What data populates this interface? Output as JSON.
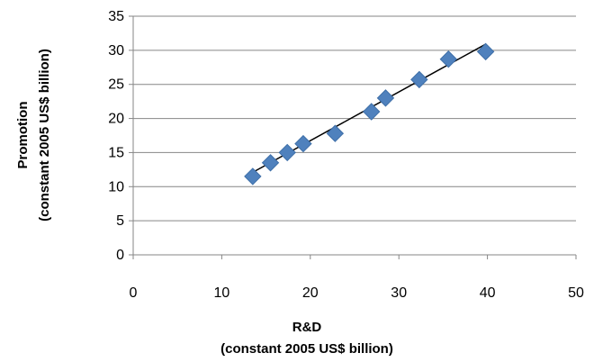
{
  "chart_data": {
    "type": "scatter",
    "xlabel": [
      "R&D",
      "(constant 2005 US$ billion)"
    ],
    "ylabel": [
      "Promotion",
      "(constant 2005 US$ billion)"
    ],
    "xlim": [
      0,
      50
    ],
    "ylim": [
      0,
      35
    ],
    "xticks": [
      0,
      10,
      20,
      30,
      40,
      50
    ],
    "yticks": [
      0,
      5,
      10,
      15,
      20,
      25,
      30,
      35
    ],
    "grid": "horizontal",
    "legend": "none",
    "series": [
      {
        "marker": "diamond",
        "color": "#4F81BD",
        "points": [
          {
            "x": 13.5,
            "y": 11.5
          },
          {
            "x": 15.5,
            "y": 13.5
          },
          {
            "x": 17.4,
            "y": 15.0
          },
          {
            "x": 19.2,
            "y": 16.3
          },
          {
            "x": 22.8,
            "y": 17.8
          },
          {
            "x": 26.9,
            "y": 21.0
          },
          {
            "x": 28.5,
            "y": 23.0
          },
          {
            "x": 32.3,
            "y": 25.7
          },
          {
            "x": 35.6,
            "y": 28.7
          },
          {
            "x": 39.8,
            "y": 29.8
          }
        ]
      }
    ],
    "trendline": {
      "type": "linear",
      "color": "#000000",
      "from": {
        "x": 13.5,
        "y": 12.1
      },
      "to": {
        "x": 39.8,
        "y": 30.9
      }
    }
  }
}
